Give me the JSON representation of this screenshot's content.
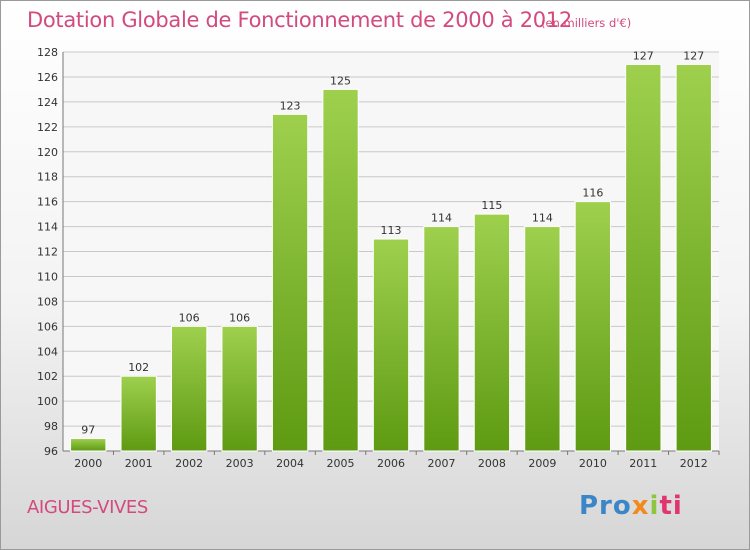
{
  "header": {
    "title": "Dotation Globale de Fonctionnement de 2000 à 2012",
    "unit": "(en milliers d'€)"
  },
  "footer": {
    "commune": "AIGUES-VIVES",
    "logo": [
      "Pro",
      "x",
      "i",
      "ti"
    ]
  },
  "colors": {
    "title": "#d24a7e",
    "bar_light": "#9ed04e",
    "bar_dark": "#5e9a12"
  },
  "chart_data": {
    "type": "bar",
    "categories": [
      "2000",
      "2001",
      "2002",
      "2003",
      "2004",
      "2005",
      "2006",
      "2007",
      "2008",
      "2009",
      "2010",
      "2011",
      "2012"
    ],
    "values": [
      97,
      102,
      106,
      106,
      123,
      125,
      113,
      114,
      115,
      114,
      116,
      127,
      127
    ],
    "ylim": [
      96,
      128
    ],
    "yticks": [
      96,
      98,
      100,
      102,
      104,
      106,
      108,
      110,
      112,
      114,
      116,
      118,
      120,
      122,
      124,
      126,
      128
    ],
    "grid": true,
    "data_labels": true
  }
}
